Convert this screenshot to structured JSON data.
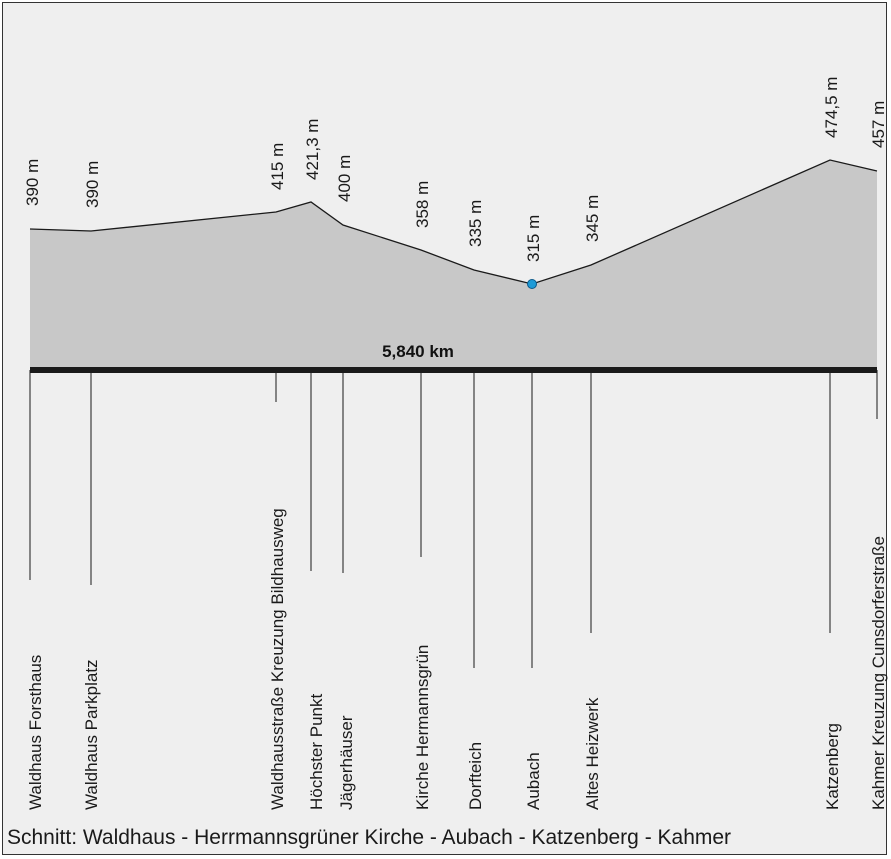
{
  "distance_label": "5,840 km",
  "caption": "Schnitt: Waldhaus - Herrmannsgrüner Kirche - Aubach - Katzenberg - Kahmer",
  "colors": {
    "profile_fill": "#c8c8c8",
    "low_point": "#1e9bd7",
    "line": "#1a1a1a"
  },
  "points": [
    {
      "place": "Waldhaus Forsthaus",
      "elevation_label": "390 m",
      "elevation": 390
    },
    {
      "place": "Waldhaus Parkplatz",
      "elevation_label": "390 m",
      "elevation": 390
    },
    {
      "place": "Waldhausstraße Kreuzung Bildhausweg",
      "elevation_label": "415 m",
      "elevation": 415
    },
    {
      "place": "Höchster Punkt",
      "elevation_label": "421,3 m",
      "elevation": 421.3
    },
    {
      "place": "Jägerhäuser",
      "elevation_label": "400 m",
      "elevation": 400
    },
    {
      "place": "Kirche Hermannsgrün",
      "elevation_label": "358 m",
      "elevation": 358
    },
    {
      "place": "Dorfteich",
      "elevation_label": "335 m",
      "elevation": 335
    },
    {
      "place": "Aubach",
      "elevation_label": "315 m",
      "elevation": 315
    },
    {
      "place": "Altes Heizwerk",
      "elevation_label": "345 m",
      "elevation": 345
    },
    {
      "place": "Katzenberg",
      "elevation_label": "474,5 m",
      "elevation": 474.5
    },
    {
      "place": "Kahmer Kreuzung Cunsdorferstraße",
      "elevation_label": "457 m",
      "elevation": 457
    }
  ]
}
